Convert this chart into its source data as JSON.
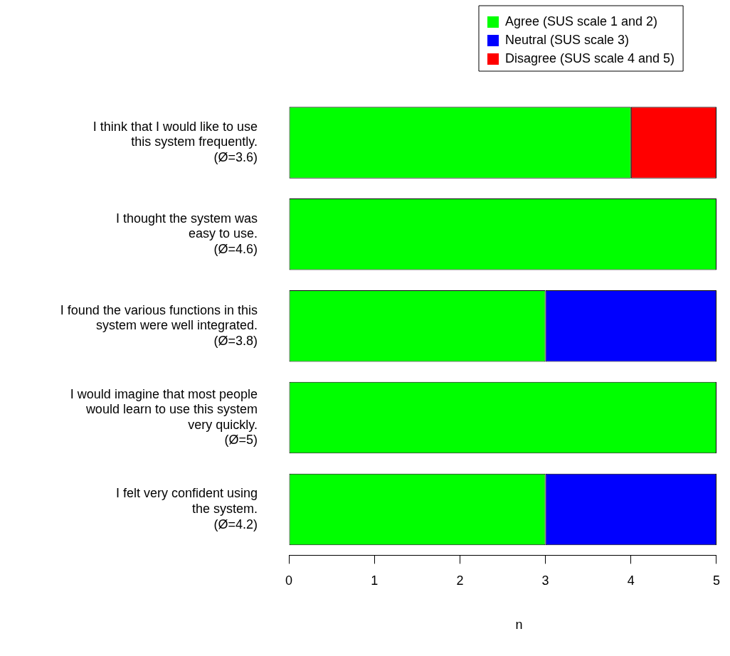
{
  "chart_data": {
    "type": "bar",
    "orientation": "horizontal",
    "stacked": true,
    "categories": [
      "I think that I would like to use\nthis system frequently.\n(Ø=3.6)",
      "I thought the system was\neasy to use.\n(Ø=4.6)",
      "I found the various functions in this\nsystem were well integrated.\n(Ø=3.8)",
      "I would imagine that most people\nwould learn to use this system\nvery quickly.\n(Ø=5)",
      "I felt very confident using\nthe system.\n(Ø=4.2)"
    ],
    "series": [
      {
        "name": "Agree (SUS scale 1 and 2)",
        "color": "#00ff00",
        "values": [
          4,
          5,
          3,
          5,
          3
        ]
      },
      {
        "name": "Neutral (SUS scale 3)",
        "color": "#0000ff",
        "values": [
          0,
          0,
          2,
          0,
          2
        ]
      },
      {
        "name": "Disagree (SUS scale 4 and 5)",
        "color": "#ff0000",
        "values": [
          1,
          0,
          0,
          0,
          0
        ]
      }
    ],
    "xlim": [
      0,
      5
    ],
    "xticks": [
      0,
      1,
      2,
      3,
      4,
      5
    ],
    "xlabel": "n",
    "legend": "top right"
  }
}
